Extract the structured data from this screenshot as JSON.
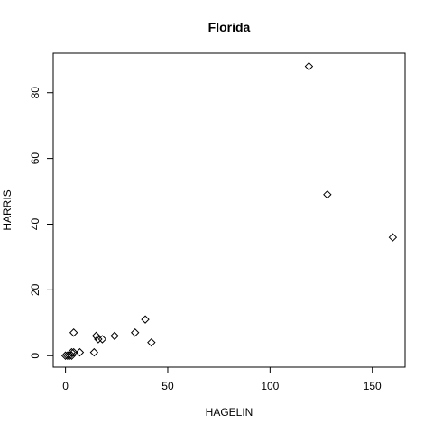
{
  "chart_data": {
    "type": "scatter",
    "title": "Florida",
    "xlabel": "HAGELIN",
    "ylabel": "HARRIS",
    "xlim": [
      -6,
      166
    ],
    "ylim": [
      -3.5,
      92
    ],
    "xticks": [
      0,
      50,
      100,
      150
    ],
    "yticks": [
      0,
      20,
      40,
      60,
      80
    ],
    "marker": "diamond",
    "grid": false,
    "points": [
      {
        "x": 119,
        "y": 88
      },
      {
        "x": 128,
        "y": 49
      },
      {
        "x": 160,
        "y": 36
      },
      {
        "x": 39,
        "y": 11
      },
      {
        "x": 34,
        "y": 7
      },
      {
        "x": 42,
        "y": 4
      },
      {
        "x": 24,
        "y": 6
      },
      {
        "x": 15,
        "y": 6
      },
      {
        "x": 16,
        "y": 5
      },
      {
        "x": 18,
        "y": 5
      },
      {
        "x": 4,
        "y": 7
      },
      {
        "x": 14,
        "y": 1
      },
      {
        "x": 7,
        "y": 1
      },
      {
        "x": 4,
        "y": 1
      },
      {
        "x": 3,
        "y": 1
      },
      {
        "x": 3,
        "y": 0
      },
      {
        "x": 2,
        "y": 0
      },
      {
        "x": 1,
        "y": 0
      },
      {
        "x": 0,
        "y": 0
      }
    ]
  }
}
